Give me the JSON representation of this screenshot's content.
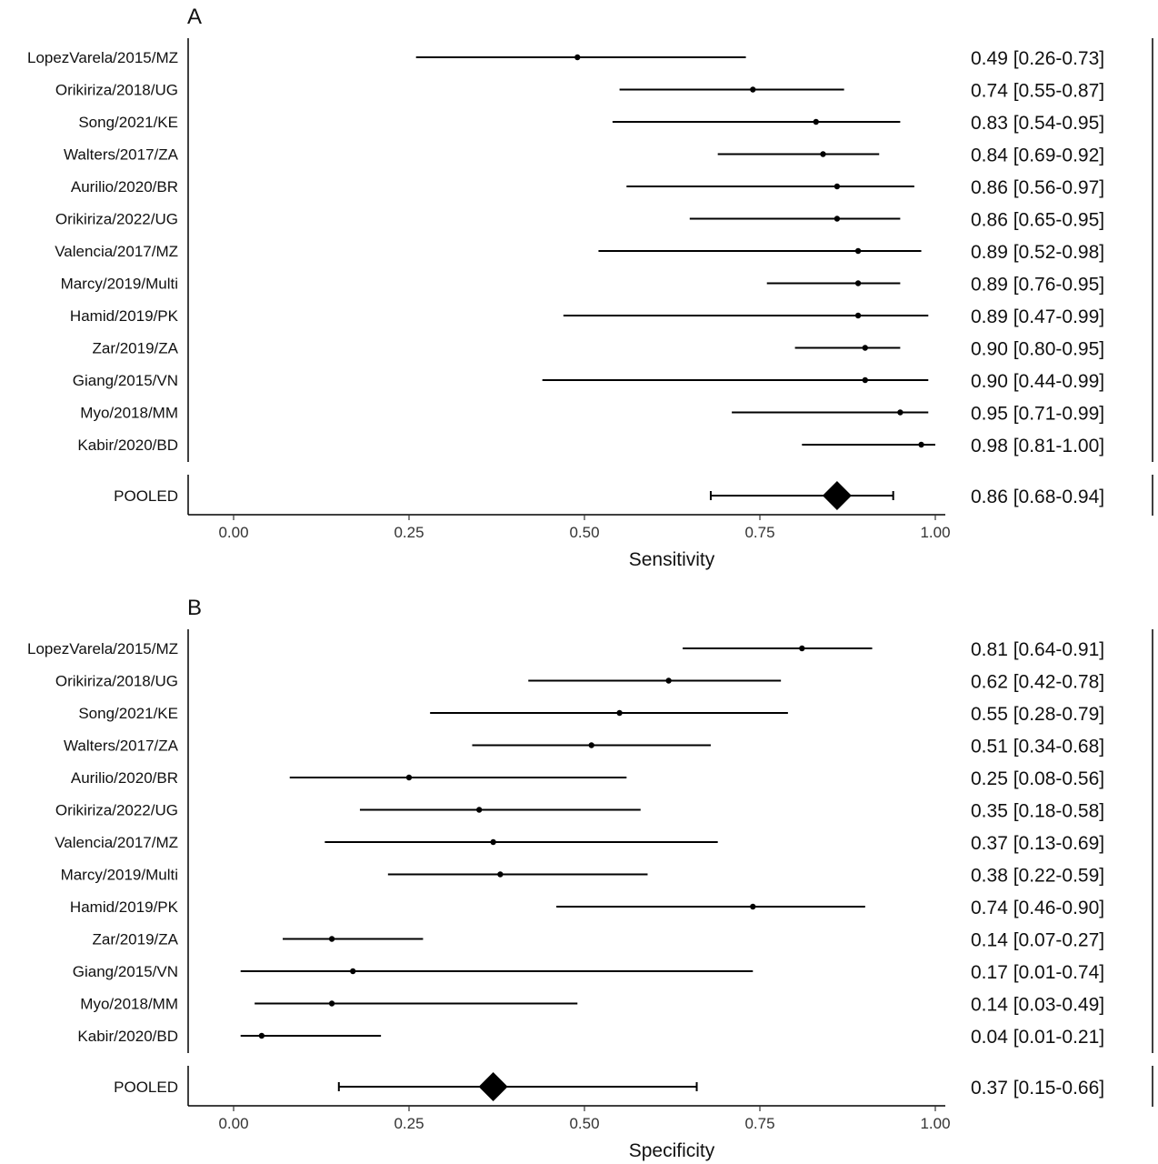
{
  "chart_data": [
    {
      "type": "forest",
      "panel_label": "A",
      "xlabel": "Sensitivity",
      "xlim": [
        0,
        1
      ],
      "ticks": [
        0,
        0.25,
        0.5,
        0.75,
        1
      ],
      "tick_labels": [
        "0.00",
        "0.25",
        "0.50",
        "0.75",
        "1.00"
      ],
      "studies": [
        {
          "label": "LopezVarela/2015/MZ",
          "estimate": 0.49,
          "lower": 0.26,
          "upper": 0.73,
          "text": "0.49 [0.26-0.73]"
        },
        {
          "label": "Orikiriza/2018/UG",
          "estimate": 0.74,
          "lower": 0.55,
          "upper": 0.87,
          "text": "0.74 [0.55-0.87]"
        },
        {
          "label": "Song/2021/KE",
          "estimate": 0.83,
          "lower": 0.54,
          "upper": 0.95,
          "text": "0.83 [0.54-0.95]"
        },
        {
          "label": "Walters/2017/ZA",
          "estimate": 0.84,
          "lower": 0.69,
          "upper": 0.92,
          "text": "0.84 [0.69-0.92]"
        },
        {
          "label": "Aurilio/2020/BR",
          "estimate": 0.86,
          "lower": 0.56,
          "upper": 0.97,
          "text": "0.86 [0.56-0.97]"
        },
        {
          "label": "Orikiriza/2022/UG",
          "estimate": 0.86,
          "lower": 0.65,
          "upper": 0.95,
          "text": "0.86 [0.65-0.95]"
        },
        {
          "label": "Valencia/2017/MZ",
          "estimate": 0.89,
          "lower": 0.52,
          "upper": 0.98,
          "text": "0.89 [0.52-0.98]"
        },
        {
          "label": "Marcy/2019/Multi",
          "estimate": 0.89,
          "lower": 0.76,
          "upper": 0.95,
          "text": "0.89 [0.76-0.95]"
        },
        {
          "label": "Hamid/2019/PK",
          "estimate": 0.89,
          "lower": 0.47,
          "upper": 0.99,
          "text": "0.89 [0.47-0.99]"
        },
        {
          "label": "Zar/2019/ZA",
          "estimate": 0.9,
          "lower": 0.8,
          "upper": 0.95,
          "text": "0.90 [0.80-0.95]"
        },
        {
          "label": "Giang/2015/VN",
          "estimate": 0.9,
          "lower": 0.44,
          "upper": 0.99,
          "text": "0.90 [0.44-0.99]"
        },
        {
          "label": "Myo/2018/MM",
          "estimate": 0.95,
          "lower": 0.71,
          "upper": 0.99,
          "text": "0.95 [0.71-0.99]"
        },
        {
          "label": "Kabir/2020/BD",
          "estimate": 0.98,
          "lower": 0.81,
          "upper": 1.0,
          "text": "0.98 [0.81-1.00]"
        }
      ],
      "pooled": {
        "label": "POOLED",
        "estimate": 0.86,
        "lower": 0.68,
        "upper": 0.94,
        "text": "0.86 [0.68-0.94]"
      }
    },
    {
      "type": "forest",
      "panel_label": "B",
      "xlabel": "Specificity",
      "xlim": [
        0,
        1
      ],
      "ticks": [
        0,
        0.25,
        0.5,
        0.75,
        1
      ],
      "tick_labels": [
        "0.00",
        "0.25",
        "0.50",
        "0.75",
        "1.00"
      ],
      "studies": [
        {
          "label": "LopezVarela/2015/MZ",
          "estimate": 0.81,
          "lower": 0.64,
          "upper": 0.91,
          "text": "0.81 [0.64-0.91]"
        },
        {
          "label": "Orikiriza/2018/UG",
          "estimate": 0.62,
          "lower": 0.42,
          "upper": 0.78,
          "text": "0.62 [0.42-0.78]"
        },
        {
          "label": "Song/2021/KE",
          "estimate": 0.55,
          "lower": 0.28,
          "upper": 0.79,
          "text": "0.55 [0.28-0.79]"
        },
        {
          "label": "Walters/2017/ZA",
          "estimate": 0.51,
          "lower": 0.34,
          "upper": 0.68,
          "text": "0.51 [0.34-0.68]"
        },
        {
          "label": "Aurilio/2020/BR",
          "estimate": 0.25,
          "lower": 0.08,
          "upper": 0.56,
          "text": "0.25 [0.08-0.56]"
        },
        {
          "label": "Orikiriza/2022/UG",
          "estimate": 0.35,
          "lower": 0.18,
          "upper": 0.58,
          "text": "0.35 [0.18-0.58]"
        },
        {
          "label": "Valencia/2017/MZ",
          "estimate": 0.37,
          "lower": 0.13,
          "upper": 0.69,
          "text": "0.37 [0.13-0.69]"
        },
        {
          "label": "Marcy/2019/Multi",
          "estimate": 0.38,
          "lower": 0.22,
          "upper": 0.59,
          "text": "0.38 [0.22-0.59]"
        },
        {
          "label": "Hamid/2019/PK",
          "estimate": 0.74,
          "lower": 0.46,
          "upper": 0.9,
          "text": "0.74 [0.46-0.90]"
        },
        {
          "label": "Zar/2019/ZA",
          "estimate": 0.14,
          "lower": 0.07,
          "upper": 0.27,
          "text": "0.14 [0.07-0.27]"
        },
        {
          "label": "Giang/2015/VN",
          "estimate": 0.17,
          "lower": 0.01,
          "upper": 0.74,
          "text": "0.17 [0.01-0.74]"
        },
        {
          "label": "Myo/2018/MM",
          "estimate": 0.14,
          "lower": 0.03,
          "upper": 0.49,
          "text": "0.14 [0.03-0.49]"
        },
        {
          "label": "Kabir/2020/BD",
          "estimate": 0.04,
          "lower": 0.01,
          "upper": 0.21,
          "text": "0.04 [0.01-0.21]"
        }
      ],
      "pooled": {
        "label": "POOLED",
        "estimate": 0.37,
        "lower": 0.15,
        "upper": 0.66,
        "text": "0.37 [0.15-0.66]"
      }
    }
  ]
}
